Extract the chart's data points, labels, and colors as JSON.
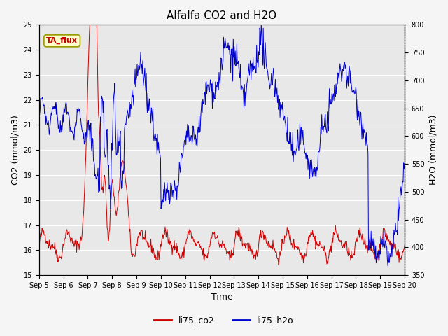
{
  "title": "Alfalfa CO2 and H2O",
  "xlabel": "Time",
  "ylabel_left": "CO2 (mmol/m3)",
  "ylabel_right": "H2O (mmol/m3)",
  "ylim_left": [
    15.0,
    25.0
  ],
  "ylim_right": [
    350,
    800
  ],
  "yticks_left": [
    15.0,
    16.0,
    17.0,
    18.0,
    19.0,
    20.0,
    21.0,
    22.0,
    23.0,
    24.0,
    25.0
  ],
  "yticks_right": [
    350,
    400,
    450,
    500,
    550,
    600,
    650,
    700,
    750,
    800
  ],
  "xtick_labels": [
    "Sep 5",
    "Sep 6",
    "Sep 7",
    "Sep 8",
    "Sep 9",
    "Sep 10",
    "Sep 11",
    "Sep 12",
    "Sep 13",
    "Sep 14",
    "Sep 15",
    "Sep 16",
    "Sep 17",
    "Sep 18",
    "Sep 19",
    "Sep 20"
  ],
  "color_co2": "#cc0000",
  "color_h2o": "#0000cc",
  "legend_co2": "li75_co2",
  "legend_h2o": "li75_h2o",
  "annotation_text": "TA_flux",
  "annotation_color": "#cc0000",
  "annotation_bg": "#ffffcc",
  "annotation_border": "#999900",
  "plot_bg_color": "#e8e8e8",
  "fig_bg_color": "#f5f5f5",
  "grid_color": "#ffffff",
  "title_fontsize": 11,
  "axis_fontsize": 9,
  "tick_fontsize": 7,
  "legend_fontsize": 9
}
